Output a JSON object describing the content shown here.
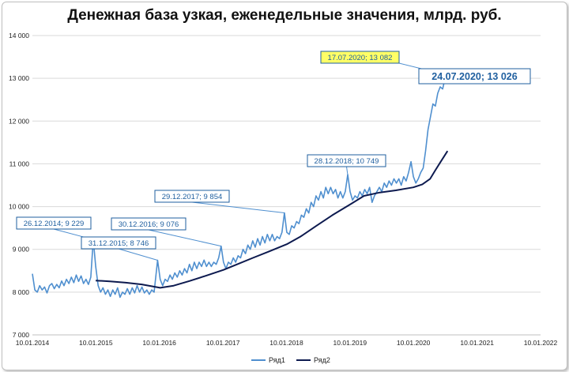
{
  "chart_data": {
    "type": "line",
    "title": "Денежная база узкая, еженедельные значения, млрд. руб.",
    "xlabel": "",
    "ylabel": "",
    "x_tick_labels": [
      "10.01.2014",
      "10.01.2015",
      "10.01.2016",
      "10.01.2017",
      "10.01.2018",
      "10.01.2019",
      "10.01.2020",
      "10.01.2021",
      "10.01.2022"
    ],
    "y_tick_labels": [
      "7 000",
      "8 000",
      "9 000",
      "10 000",
      "11 000",
      "12 000",
      "13 000",
      "14 000"
    ],
    "ylim": [
      7000,
      14000
    ],
    "xlim": [
      "2014-01-10",
      "2022-01-10"
    ],
    "grid": "horizontal",
    "legend_position": "bottom",
    "series": [
      {
        "name": "Ряд1",
        "color": "#4f8fcf",
        "points": [
          [
            "2014-01-10",
            8430
          ],
          [
            "2014-01-24",
            8050
          ],
          [
            "2014-02-07",
            8000
          ],
          [
            "2014-02-21",
            8150
          ],
          [
            "2014-03-07",
            8050
          ],
          [
            "2014-03-21",
            8120
          ],
          [
            "2014-04-04",
            7980
          ],
          [
            "2014-04-18",
            8150
          ],
          [
            "2014-05-02",
            8200
          ],
          [
            "2014-05-16",
            8080
          ],
          [
            "2014-05-30",
            8180
          ],
          [
            "2014-06-13",
            8100
          ],
          [
            "2014-06-27",
            8260
          ],
          [
            "2014-07-11",
            8150
          ],
          [
            "2014-07-25",
            8300
          ],
          [
            "2014-08-08",
            8200
          ],
          [
            "2014-08-22",
            8350
          ],
          [
            "2014-09-05",
            8220
          ],
          [
            "2014-09-19",
            8400
          ],
          [
            "2014-10-03",
            8250
          ],
          [
            "2014-10-17",
            8380
          ],
          [
            "2014-10-31",
            8200
          ],
          [
            "2014-11-14",
            8300
          ],
          [
            "2014-11-28",
            8180
          ],
          [
            "2014-12-12",
            8350
          ],
          [
            "2014-12-26",
            9229
          ],
          [
            "2015-01-09",
            8600
          ],
          [
            "2015-01-23",
            8150
          ],
          [
            "2015-02-06",
            8000
          ],
          [
            "2015-02-20",
            8100
          ],
          [
            "2015-03-06",
            7950
          ],
          [
            "2015-03-20",
            8050
          ],
          [
            "2015-04-03",
            7900
          ],
          [
            "2015-04-17",
            8050
          ],
          [
            "2015-05-01",
            7950
          ],
          [
            "2015-05-15",
            8100
          ],
          [
            "2015-05-29",
            7880
          ],
          [
            "2015-06-12",
            8000
          ],
          [
            "2015-06-26",
            7950
          ],
          [
            "2015-07-10",
            8080
          ],
          [
            "2015-07-24",
            7950
          ],
          [
            "2015-08-07",
            8100
          ],
          [
            "2015-08-21",
            7980
          ],
          [
            "2015-09-04",
            8150
          ],
          [
            "2015-09-18",
            8000
          ],
          [
            "2015-10-02",
            8120
          ],
          [
            "2015-10-16",
            7980
          ],
          [
            "2015-10-30",
            8050
          ],
          [
            "2015-11-13",
            7950
          ],
          [
            "2015-11-27",
            8050
          ],
          [
            "2015-12-11",
            8000
          ],
          [
            "2015-12-31",
            8746
          ],
          [
            "2016-01-15",
            8300
          ],
          [
            "2016-01-29",
            8150
          ],
          [
            "2016-02-12",
            8300
          ],
          [
            "2016-02-26",
            8250
          ],
          [
            "2016-03-11",
            8400
          ],
          [
            "2016-03-25",
            8300
          ],
          [
            "2016-04-08",
            8450
          ],
          [
            "2016-04-22",
            8350
          ],
          [
            "2016-05-06",
            8500
          ],
          [
            "2016-05-20",
            8400
          ],
          [
            "2016-06-03",
            8550
          ],
          [
            "2016-06-17",
            8450
          ],
          [
            "2016-07-01",
            8650
          ],
          [
            "2016-07-15",
            8500
          ],
          [
            "2016-07-29",
            8700
          ],
          [
            "2016-08-12",
            8550
          ],
          [
            "2016-08-26",
            8700
          ],
          [
            "2016-09-09",
            8600
          ],
          [
            "2016-09-23",
            8750
          ],
          [
            "2016-10-07",
            8600
          ],
          [
            "2016-10-21",
            8700
          ],
          [
            "2016-11-04",
            8600
          ],
          [
            "2016-11-18",
            8700
          ],
          [
            "2016-12-02",
            8650
          ],
          [
            "2016-12-16",
            8800
          ],
          [
            "2016-12-30",
            9076
          ],
          [
            "2017-01-13",
            8700
          ],
          [
            "2017-01-27",
            8550
          ],
          [
            "2017-02-10",
            8700
          ],
          [
            "2017-02-24",
            8650
          ],
          [
            "2017-03-10",
            8800
          ],
          [
            "2017-03-24",
            8700
          ],
          [
            "2017-04-07",
            8850
          ],
          [
            "2017-04-21",
            8800
          ],
          [
            "2017-05-05",
            9000
          ],
          [
            "2017-05-19",
            8900
          ],
          [
            "2017-06-02",
            9100
          ],
          [
            "2017-06-16",
            9000
          ],
          [
            "2017-06-30",
            9200
          ],
          [
            "2017-07-14",
            9050
          ],
          [
            "2017-07-28",
            9250
          ],
          [
            "2017-08-11",
            9100
          ],
          [
            "2017-08-25",
            9300
          ],
          [
            "2017-09-08",
            9150
          ],
          [
            "2017-09-22",
            9350
          ],
          [
            "2017-10-06",
            9200
          ],
          [
            "2017-10-20",
            9350
          ],
          [
            "2017-11-03",
            9200
          ],
          [
            "2017-11-17",
            9300
          ],
          [
            "2017-12-01",
            9250
          ],
          [
            "2017-12-15",
            9400
          ],
          [
            "2017-12-29",
            9854
          ],
          [
            "2018-01-12",
            9400
          ],
          [
            "2018-01-26",
            9350
          ],
          [
            "2018-02-09",
            9550
          ],
          [
            "2018-02-23",
            9500
          ],
          [
            "2018-03-09",
            9650
          ],
          [
            "2018-03-23",
            9600
          ],
          [
            "2018-04-06",
            9800
          ],
          [
            "2018-04-20",
            9750
          ],
          [
            "2018-05-04",
            9950
          ],
          [
            "2018-05-18",
            9850
          ],
          [
            "2018-06-01",
            10100
          ],
          [
            "2018-06-15",
            10000
          ],
          [
            "2018-06-29",
            10250
          ],
          [
            "2018-07-13",
            10150
          ],
          [
            "2018-07-27",
            10350
          ],
          [
            "2018-08-10",
            10200
          ],
          [
            "2018-08-24",
            10450
          ],
          [
            "2018-09-07",
            10300
          ],
          [
            "2018-09-21",
            10450
          ],
          [
            "2018-10-05",
            10300
          ],
          [
            "2018-10-19",
            10400
          ],
          [
            "2018-11-02",
            10200
          ],
          [
            "2018-11-16",
            10350
          ],
          [
            "2018-11-30",
            10200
          ],
          [
            "2018-12-14",
            10350
          ],
          [
            "2018-12-28",
            10749
          ],
          [
            "2019-01-11",
            10350
          ],
          [
            "2019-01-25",
            10150
          ],
          [
            "2019-02-08",
            10250
          ],
          [
            "2019-02-22",
            10200
          ],
          [
            "2019-03-08",
            10350
          ],
          [
            "2019-03-22",
            10250
          ],
          [
            "2019-04-05",
            10400
          ],
          [
            "2019-04-19",
            10300
          ],
          [
            "2019-05-03",
            10450
          ],
          [
            "2019-05-17",
            10100
          ],
          [
            "2019-05-31",
            10250
          ],
          [
            "2019-06-14",
            10350
          ],
          [
            "2019-06-28",
            10450
          ],
          [
            "2019-07-12",
            10350
          ],
          [
            "2019-07-26",
            10550
          ],
          [
            "2019-08-09",
            10450
          ],
          [
            "2019-08-23",
            10600
          ],
          [
            "2019-09-06",
            10500
          ],
          [
            "2019-09-20",
            10650
          ],
          [
            "2019-10-04",
            10550
          ],
          [
            "2019-10-18",
            10650
          ],
          [
            "2019-11-01",
            10500
          ],
          [
            "2019-11-15",
            10700
          ],
          [
            "2019-11-29",
            10600
          ],
          [
            "2019-12-13",
            10800
          ],
          [
            "2019-12-27",
            11050
          ],
          [
            "2020-01-10",
            10700
          ],
          [
            "2020-01-24",
            10550
          ],
          [
            "2020-02-07",
            10650
          ],
          [
            "2020-02-21",
            10800
          ],
          [
            "2020-03-06",
            10900
          ],
          [
            "2020-03-20",
            11300
          ],
          [
            "2020-04-03",
            11800
          ],
          [
            "2020-04-17",
            12100
          ],
          [
            "2020-05-01",
            12400
          ],
          [
            "2020-05-15",
            12350
          ],
          [
            "2020-05-29",
            12650
          ],
          [
            "2020-06-12",
            12800
          ],
          [
            "2020-06-26",
            12750
          ],
          [
            "2020-07-10",
            13000
          ],
          [
            "2020-07-17",
            13082
          ],
          [
            "2020-07-24",
            13026
          ]
        ]
      },
      {
        "name": "Ряд2",
        "color": "#0d1a4f",
        "points": [
          [
            "2015-01-09",
            8270
          ],
          [
            "2015-04-01",
            8250
          ],
          [
            "2015-07-01",
            8220
          ],
          [
            "2015-10-01",
            8180
          ],
          [
            "2016-01-15",
            8100
          ],
          [
            "2016-04-01",
            8150
          ],
          [
            "2016-07-01",
            8260
          ],
          [
            "2016-10-01",
            8380
          ],
          [
            "2017-01-13",
            8520
          ],
          [
            "2017-04-01",
            8650
          ],
          [
            "2017-07-01",
            8800
          ],
          [
            "2017-10-01",
            8950
          ],
          [
            "2018-01-12",
            9120
          ],
          [
            "2018-04-01",
            9300
          ],
          [
            "2018-07-01",
            9550
          ],
          [
            "2018-10-01",
            9800
          ],
          [
            "2019-01-11",
            10050
          ],
          [
            "2019-04-01",
            10250
          ],
          [
            "2019-07-01",
            10330
          ],
          [
            "2019-10-01",
            10380
          ],
          [
            "2020-01-10",
            10450
          ],
          [
            "2020-03-01",
            10520
          ],
          [
            "2020-04-15",
            10650
          ],
          [
            "2020-05-15",
            10850
          ],
          [
            "2020-06-15",
            11050
          ],
          [
            "2020-07-24",
            11300
          ]
        ]
      }
    ],
    "annotations": [
      {
        "text": "26.12.2014; 9 229",
        "date": "2014-12-26",
        "value": 9229
      },
      {
        "text": "31.12.2015; 8 746",
        "date": "2015-12-31",
        "value": 8746
      },
      {
        "text": "30.12.2016; 9 076",
        "date": "2016-12-30",
        "value": 9076
      },
      {
        "text": "29.12.2017; 9 854",
        "date": "2017-12-29",
        "value": 9854
      },
      {
        "text": "28.12.2018; 10 749",
        "date": "2018-12-28",
        "value": 10749
      },
      {
        "text": "17.07.2020; 13 082",
        "date": "2020-07-17",
        "value": 13082,
        "highlight": "#ffff66"
      },
      {
        "text": "24.07.2020; 13 026",
        "date": "2020-07-24",
        "value": 13026,
        "large": true
      }
    ]
  }
}
